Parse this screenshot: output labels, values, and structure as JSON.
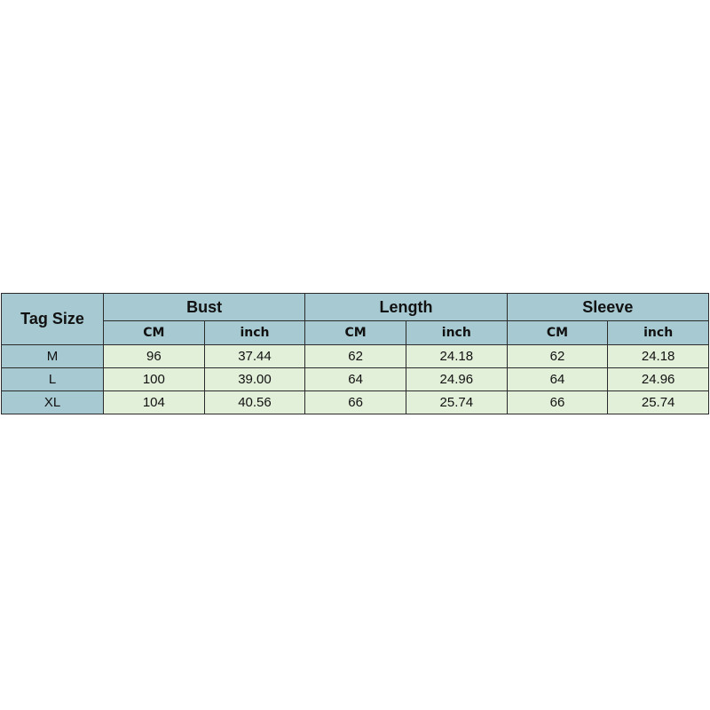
{
  "table": {
    "corner": "Tag Size",
    "groups": [
      "Bust",
      "Length",
      "Sleeve"
    ],
    "units": [
      "CM",
      "inch",
      "CM",
      "inch",
      "CM",
      "inch"
    ],
    "rows": [
      [
        "M",
        "96",
        "37.44",
        "62",
        "24.18",
        "62",
        "24.18"
      ],
      [
        "L",
        "100",
        "39.00",
        "64",
        "24.96",
        "64",
        "24.96"
      ],
      [
        "XL",
        "104",
        "40.56",
        "66",
        "25.74",
        "66",
        "25.74"
      ]
    ]
  }
}
